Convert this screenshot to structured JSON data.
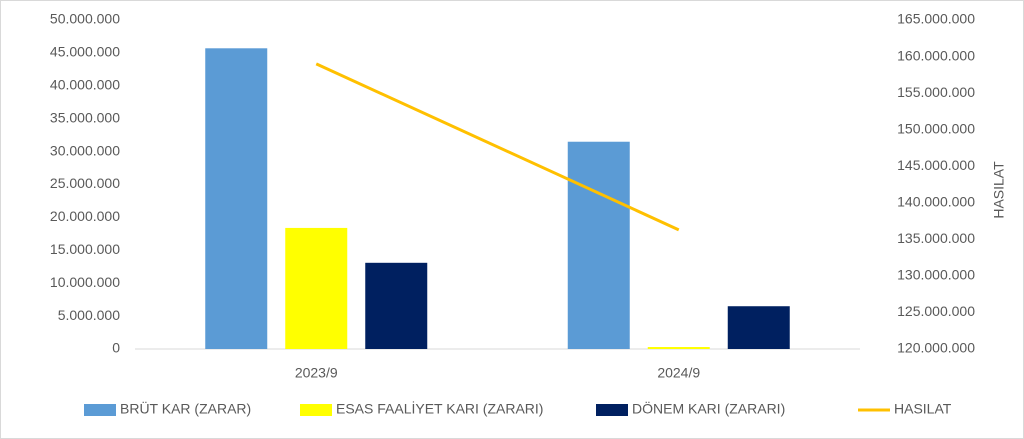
{
  "chart_data": {
    "type": "combo",
    "categories": [
      "2023/9",
      "2024/9"
    ],
    "series": [
      {
        "name": "BRÜT KAR (ZARAR)",
        "type": "bar",
        "color": "#5B9BD5",
        "values": [
          45700000,
          31500000
        ]
      },
      {
        "name": "ESAS FAALİYET KARI (ZARARI)",
        "type": "bar",
        "color": "#FFFF00",
        "values": [
          18400000,
          300000
        ]
      },
      {
        "name": "DÖNEM KARI (ZARARI)",
        "type": "bar",
        "color": "#002060",
        "values": [
          13100000,
          6500000
        ]
      },
      {
        "name": "HASILAT",
        "type": "line",
        "axis": "y2",
        "color": "#FFC000",
        "values": [
          159000000,
          136300000
        ]
      }
    ],
    "ylim": [
      0,
      50000000
    ],
    "yticks": [
      0,
      {
        "value": 5000000,
        "label": "5.000.000"
      },
      {
        "value": 10000000,
        "label": "10.000.000"
      },
      {
        "value": 15000000,
        "label": "15.000.000"
      },
      {
        "value": 20000000,
        "label": "20.000.000"
      },
      {
        "value": 25000000,
        "label": "25.000.000"
      },
      {
        "value": 30000000,
        "label": "30.000.000"
      },
      {
        "value": 35000000,
        "label": "35.000.000"
      },
      {
        "value": 40000000,
        "label": "40.000.000"
      },
      {
        "value": 45000000,
        "label": "45.000.000"
      },
      {
        "value": 50000000,
        "label": "50.000.000"
      }
    ],
    "y2lim": [
      120000000,
      165000000
    ],
    "y2ticks": [
      {
        "value": 120000000,
        "label": "120.000.000"
      },
      {
        "value": 125000000,
        "label": "125.000.000"
      },
      {
        "value": 130000000,
        "label": "130.000.000"
      },
      {
        "value": 135000000,
        "label": "135.000.000"
      },
      {
        "value": 140000000,
        "label": "140.000.000"
      },
      {
        "value": 145000000,
        "label": "145.000.000"
      },
      {
        "value": 150000000,
        "label": "150.000.000"
      },
      {
        "value": 155000000,
        "label": "155.000.000"
      },
      {
        "value": 160000000,
        "label": "160.000.000"
      },
      {
        "value": 165000000,
        "label": "165.000.000"
      }
    ],
    "y2label": "HASILAT",
    "grid": false,
    "legend": "bottom"
  }
}
